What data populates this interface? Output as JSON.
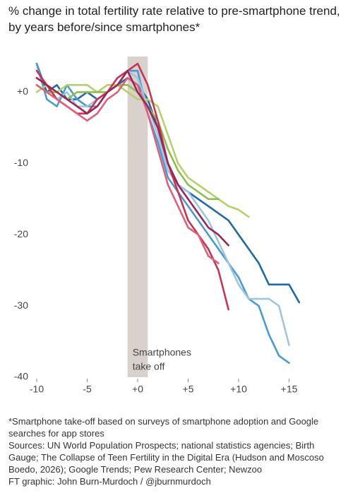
{
  "chart_data": {
    "type": "line",
    "title": "% change in total fertility rate relative to pre-smartphone trend, by years before/since smartphones*",
    "xlim": [
      -10,
      16.5
    ],
    "ylim": [
      -40,
      5
    ],
    "xticks": [
      -10,
      -5,
      {
        "value": 0,
        "label": "+0"
      },
      {
        "value": 5,
        "label": "+5"
      },
      {
        "value": 10,
        "label": "+10"
      },
      {
        "value": 15,
        "label": "+15"
      }
    ],
    "yticks": [
      {
        "value": 0,
        "label": "+0"
      },
      -10,
      -20,
      -30,
      -40
    ],
    "grid": false,
    "shaded_span": [
      -1,
      1
    ],
    "annotation": [
      "Smartphones",
      "take off"
    ],
    "series": [
      {
        "color": "#1f6aa5",
        "x": [
          -10,
          -9,
          -8,
          -7,
          -6,
          -5,
          -4,
          -3,
          -2,
          -1,
          0,
          1,
          2,
          3,
          4,
          5,
          6,
          7,
          8,
          9,
          10,
          11,
          12,
          13,
          14,
          15,
          16
        ],
        "values": [
          4,
          0,
          1,
          -1,
          -1,
          0,
          -1,
          0,
          1,
          2,
          1,
          -1,
          -5,
          -10,
          -13,
          -14,
          -15,
          -16,
          -17,
          -18,
          -20,
          -22,
          -24,
          -27,
          -27,
          -27,
          -29.5
        ]
      },
      {
        "color": "#4a9ad3",
        "x": [
          -10,
          -9,
          -8,
          -7,
          -6,
          -5,
          -4,
          -3,
          -2,
          -1,
          0,
          1,
          2,
          3,
          4,
          5,
          6,
          7,
          8,
          9,
          10,
          11,
          12,
          13,
          14,
          15
        ],
        "values": [
          4,
          -1,
          -2,
          1,
          -1,
          -2,
          -2,
          0,
          1,
          3,
          3,
          -3,
          -7,
          -12,
          -14,
          -16,
          -18,
          -20,
          -22,
          -24,
          -26,
          -29,
          -30,
          -34,
          -37,
          -38
        ]
      },
      {
        "color": "#9cc6df",
        "x": [
          -10,
          -9,
          -8,
          -7,
          -6,
          -5,
          -4,
          -3,
          -2,
          -1,
          0,
          1,
          2,
          3,
          4,
          5,
          6,
          7,
          8,
          9,
          10,
          11,
          12,
          13,
          14,
          15
        ],
        "values": [
          1,
          0,
          -1,
          0,
          -2,
          -2,
          -1,
          0,
          1,
          3,
          2,
          -2,
          -6,
          -11,
          -13,
          -14,
          -16,
          -18,
          -21,
          -24,
          -27,
          -29,
          -29,
          -29,
          -30,
          -35.5
        ]
      },
      {
        "color": "#b5cf6b",
        "x": [
          -10,
          -9,
          -8,
          -7,
          -6,
          -5,
          -4,
          -3,
          -2,
          -1,
          0,
          1,
          2,
          3,
          4,
          5,
          6,
          7,
          8,
          9,
          10,
          11
        ],
        "values": [
          0,
          1,
          0,
          1,
          1,
          1,
          0,
          1,
          1,
          0,
          -1,
          -1,
          -2,
          -6,
          -10,
          -12,
          -13,
          -14,
          -15,
          -16,
          -16.5,
          -17.5
        ]
      },
      {
        "color": "#8cbf4f",
        "x": [
          -10,
          -9,
          -8,
          -7,
          -6,
          -5,
          -4,
          -3,
          -2,
          -1,
          0,
          1,
          2,
          3,
          4,
          5,
          6,
          7,
          8
        ],
        "values": [
          1,
          0,
          0,
          -1,
          0,
          0,
          0,
          0,
          1,
          1,
          0,
          -2,
          -4,
          -8,
          -11,
          -13,
          -14,
          -15,
          -15
        ]
      },
      {
        "color": "#c73452",
        "x": [
          -10,
          -9,
          -8,
          -7,
          -6,
          -5,
          -4,
          -3,
          -2,
          -1,
          0,
          1,
          2,
          3,
          4,
          5,
          6,
          7,
          8,
          9
        ],
        "values": [
          3,
          1,
          -1,
          -2,
          -3,
          -3,
          -1,
          0,
          2,
          3,
          4,
          1,
          -4,
          -10,
          -14,
          -18,
          -20,
          -22,
          -25,
          -30.5
        ]
      },
      {
        "color": "#e0607a",
        "x": [
          -10,
          -9,
          -8,
          -7,
          -6,
          -5,
          -4,
          -3,
          -2,
          -1,
          0,
          1,
          2,
          3,
          4,
          5,
          6,
          7,
          8
        ],
        "values": [
          1,
          0,
          -1,
          -2,
          -3,
          -4,
          -3,
          -1,
          0,
          2,
          1,
          -3,
          -8,
          -13,
          -16,
          -19,
          -20,
          -23,
          -24
        ]
      },
      {
        "color": "#9e2456",
        "x": [
          -10,
          -9,
          -8,
          -7,
          -6,
          -5,
          -4,
          -3,
          -2,
          -1,
          0,
          1,
          2,
          3,
          4,
          5,
          6,
          7,
          8,
          9
        ],
        "values": [
          2,
          1,
          0,
          -1,
          -2,
          -3,
          -2,
          0,
          1,
          3,
          0,
          -2,
          -5,
          -10,
          -13,
          -15,
          -17,
          -19,
          -20,
          -21.5
        ]
      }
    ],
    "footnotes": [
      "*Smartphone take-off based on surveys of smartphone adoption and Google searches for app stores",
      "Sources: UN World Population Prospects; national statistics agencies; Birth Gauge; The Collapse of Teen Fertility in the Digital Era (Hudson and Moscoso Boedo, 2026); Google Trends; Pew Research Center; Newzoo",
      "FT graphic: John Burn-Murdoch / @jburnmurdoch"
    ]
  }
}
